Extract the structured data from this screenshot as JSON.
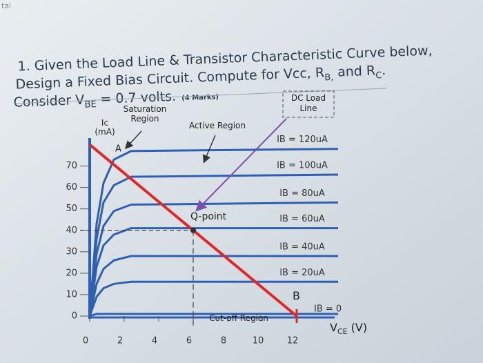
{
  "corner_text": "tal",
  "question": {
    "line1": "1. Given the Load Line & Transistor Characteristic Curve below,",
    "line2": [
      "Design a Fixed Bias Circuit. Compute for Vcc, R",
      "B,",
      " and R",
      "C",
      "."
    ],
    "line3": [
      "Consider V",
      "BE",
      " = 0.7 volts.",
      "(4 Marks)"
    ]
  },
  "chart_data": {
    "type": "line",
    "y_label": [
      "Ic",
      "(mA)"
    ],
    "x_label": [
      "V",
      "CE",
      " (V)"
    ],
    "annotations": {
      "saturation": [
        "Saturation",
        "Region"
      ],
      "active": "Active Region",
      "dc_load_line": [
        "DC Load",
        "Line"
      ],
      "qpoint": "Q-point",
      "cutoff": "Cut-off Region",
      "point_a": "A",
      "point_b": "B"
    },
    "x": [
      0,
      0.4,
      0.8,
      1.4,
      2.4,
      14.4
    ],
    "series": [
      {
        "name": "IB = 120uA",
        "color": "#2f5fb3",
        "values": [
          0,
          43,
          62,
          73,
          77,
          78
        ]
      },
      {
        "name": "IB = 100uA",
        "color": "#2f5fb3",
        "values": [
          0,
          36,
          53,
          61,
          65,
          66
        ]
      },
      {
        "name": "IB = 80uA",
        "color": "#2f5fb3",
        "values": [
          0,
          29,
          42,
          49,
          52,
          53
        ]
      },
      {
        "name": "IB = 60uA",
        "color": "#2f5fb3",
        "values": [
          0,
          23,
          33,
          38,
          41,
          41
        ]
      },
      {
        "name": "IB = 40uA",
        "color": "#2f5fb3",
        "values": [
          0,
          15,
          22,
          26,
          28,
          28
        ]
      },
      {
        "name": "IB = 20uA",
        "color": "#2f5fb3",
        "values": [
          0,
          9,
          13,
          15,
          16,
          16
        ]
      },
      {
        "name": "IB = 0",
        "color": "#2f5fb3",
        "values": [
          0,
          1,
          1,
          1,
          1,
          1
        ]
      }
    ],
    "load_line": {
      "x": [
        0,
        12
      ],
      "values": [
        80,
        0
      ],
      "color": "#e02828"
    },
    "qpoint": {
      "x": 6,
      "y": 40
    },
    "xlim": [
      0,
      14.4
    ],
    "ylim": [
      0,
      85
    ],
    "xticks": [
      0,
      2,
      4,
      6,
      8,
      10,
      12
    ],
    "yticks": [
      0,
      10,
      20,
      30,
      40,
      50,
      60,
      70
    ]
  }
}
